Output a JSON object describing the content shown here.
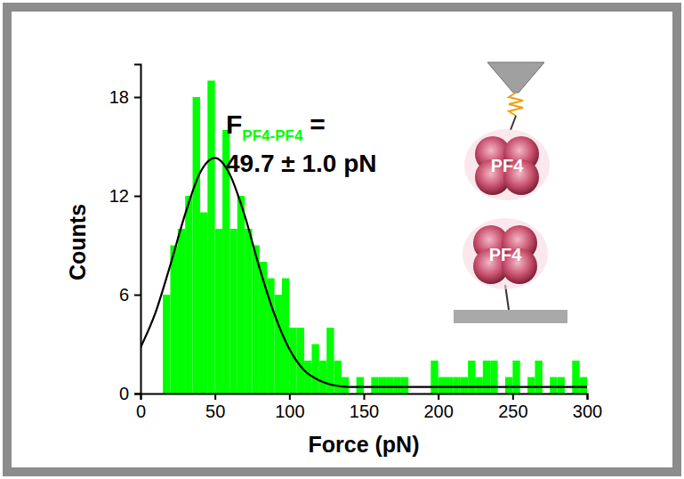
{
  "chart_data": {
    "type": "histogram",
    "xlabel": "Force (pN)",
    "ylabel": "Counts",
    "bins": [
      15,
      20,
      25,
      30,
      35,
      40,
      45,
      50,
      55,
      60,
      65,
      70,
      75,
      80,
      85,
      90,
      95,
      100,
      105,
      110,
      115,
      120,
      125,
      130,
      135,
      140,
      145,
      150,
      155,
      160,
      165,
      170,
      175,
      180,
      185,
      190,
      195,
      200,
      205,
      210,
      215,
      220,
      225,
      230,
      235,
      240,
      245,
      250,
      255,
      260,
      265,
      270,
      275,
      280,
      285,
      290,
      295,
      300
    ],
    "counts": [
      6,
      9,
      10,
      12,
      18,
      11,
      19,
      10,
      16,
      10,
      12,
      10,
      9,
      8,
      7,
      6,
      7,
      4,
      4,
      2,
      3,
      2,
      4,
      2,
      1,
      0,
      1,
      0,
      1,
      1,
      1,
      1,
      1,
      0,
      0,
      0,
      2,
      1,
      1,
      1,
      1,
      2,
      1,
      2,
      2,
      0,
      1,
      2,
      0,
      1,
      2,
      0,
      1,
      1,
      0,
      2,
      1
    ],
    "color": "#00ff00",
    "xlim": [
      0,
      300
    ],
    "xticks": [
      0,
      50,
      100,
      150,
      200,
      250,
      300
    ],
    "ylim": [
      0,
      20
    ],
    "yticks": [
      0,
      6,
      12,
      18
    ],
    "fit": {
      "type": "line",
      "color": "#000000",
      "x": [
        0,
        10,
        20,
        30,
        40,
        50,
        60,
        70,
        80,
        90,
        100,
        110,
        120,
        130,
        140,
        150,
        200,
        250,
        300
      ],
      "values": [
        2.8,
        4.9,
        7.8,
        10.9,
        13.4,
        14.3,
        13.3,
        10.8,
        7.6,
        4.8,
        2.7,
        1.4,
        0.8,
        0.5,
        0.4,
        0.4,
        0.4,
        0.4,
        0.4
      ]
    },
    "annotation": {
      "symbol": "F",
      "subscript": "PF4-PF4",
      "equals": "=",
      "value": "49.7 ± 1.0 pN"
    },
    "inset_labels": [
      "PF4",
      "PF4"
    ]
  }
}
